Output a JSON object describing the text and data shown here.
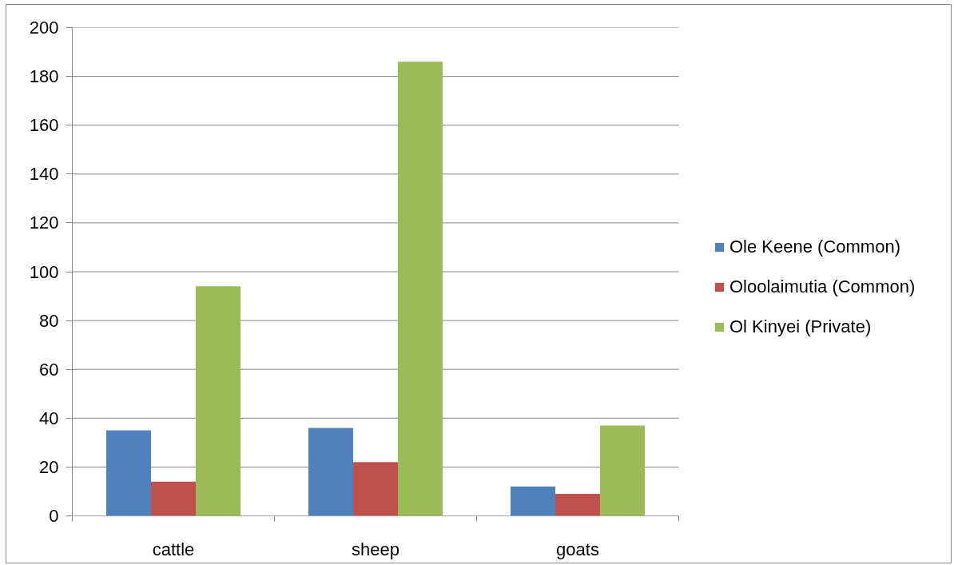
{
  "chart_data": {
    "type": "bar",
    "categories": [
      "cattle",
      "sheep",
      "goats"
    ],
    "series": [
      {
        "name": "Ole Keene (Common)",
        "color": "#4f81bd",
        "values": [
          35,
          36,
          12
        ]
      },
      {
        "name": "Oloolaimutia (Common)",
        "color": "#c0504d",
        "values": [
          14,
          22,
          9
        ]
      },
      {
        "name": "Ol Kinyei (Private)",
        "color": "#9bbb59",
        "values": [
          94,
          186,
          37
        ]
      }
    ],
    "ylim": [
      0,
      200
    ],
    "yticks": [
      0,
      20,
      40,
      60,
      80,
      100,
      120,
      140,
      160,
      180,
      200
    ],
    "grid": "y",
    "legend": "right"
  }
}
